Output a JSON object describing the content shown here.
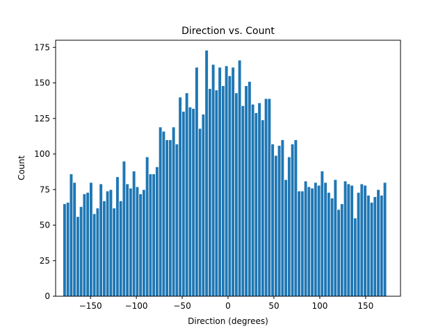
{
  "chart_data": {
    "type": "bar",
    "title": "Direction vs. Count",
    "xlabel": "Direction (degrees)",
    "ylabel": "Count",
    "xlim": [
      -188,
      188
    ],
    "ylim": [
      0,
      180
    ],
    "bin_start": -180,
    "bin_width": 3.6,
    "values": [
      65,
      66,
      86,
      80,
      56,
      63,
      72,
      73,
      80,
      58,
      62,
      79,
      67,
      74,
      75,
      62,
      84,
      67,
      95,
      79,
      76,
      88,
      77,
      72,
      75,
      98,
      86,
      86,
      91,
      119,
      116,
      110,
      110,
      119,
      107,
      140,
      130,
      143,
      133,
      132,
      161,
      118,
      128,
      173,
      146,
      163,
      145,
      161,
      148,
      162,
      155,
      161,
      143,
      166,
      134,
      148,
      151,
      135,
      129,
      136,
      124,
      139,
      139,
      107,
      99,
      106,
      110,
      82,
      98,
      107,
      110,
      74,
      74,
      81,
      77,
      76,
      80,
      78,
      88,
      80,
      73,
      69,
      82,
      61,
      65,
      81,
      79,
      78,
      55,
      73,
      79,
      78,
      71,
      66,
      70,
      75,
      71,
      80
    ],
    "bar_color": "#1f77b4",
    "bar_edge_color": "#ffffff",
    "x_ticks": [
      {
        "value": -150,
        "label": "−150"
      },
      {
        "value": -100,
        "label": "−100"
      },
      {
        "value": -50,
        "label": "−50"
      },
      {
        "value": 0,
        "label": "0"
      },
      {
        "value": 50,
        "label": "50"
      },
      {
        "value": 100,
        "label": "100"
      },
      {
        "value": 150,
        "label": "150"
      }
    ],
    "y_ticks": [
      {
        "value": 0,
        "label": "0"
      },
      {
        "value": 25,
        "label": "25"
      },
      {
        "value": 50,
        "label": "50"
      },
      {
        "value": 75,
        "label": "75"
      },
      {
        "value": 100,
        "label": "100"
      },
      {
        "value": 125,
        "label": "125"
      },
      {
        "value": 150,
        "label": "150"
      },
      {
        "value": 175,
        "label": "175"
      }
    ],
    "grid": false,
    "legend": "none"
  }
}
